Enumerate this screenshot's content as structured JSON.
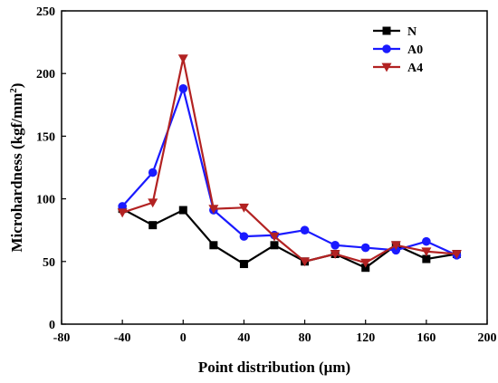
{
  "chart_data": {
    "type": "line",
    "title": "",
    "xlabel": "Point distribution (μm)",
    "ylabel_main": "Microhardness (kgf/mm",
    "ylabel_sup": "2",
    "ylabel_close": ")",
    "xlim": [
      -80,
      200
    ],
    "ylim": [
      0,
      250
    ],
    "xticks": [
      -80,
      -40,
      0,
      40,
      80,
      120,
      160,
      200
    ],
    "yticks": [
      0,
      50,
      100,
      150,
      200,
      250
    ],
    "x": [
      -40,
      -20,
      0,
      20,
      40,
      60,
      80,
      100,
      120,
      140,
      160,
      180
    ],
    "legend_position": "top-right",
    "grid": false,
    "series": [
      {
        "name": "N",
        "color": "#000000",
        "marker": "square",
        "values": [
          92,
          79,
          91,
          63,
          48,
          63,
          50,
          56,
          45,
          63,
          52,
          56
        ]
      },
      {
        "name": "A0",
        "color": "#1a1aff",
        "marker": "circle",
        "values": [
          94,
          121,
          188,
          91,
          70,
          71,
          75,
          63,
          61,
          59,
          66,
          55
        ]
      },
      {
        "name": "A4",
        "color": "#b22222",
        "marker": "triangle-down",
        "values": [
          89,
          97,
          212,
          92,
          93,
          70,
          50,
          56,
          49,
          63,
          58,
          56
        ]
      }
    ]
  }
}
